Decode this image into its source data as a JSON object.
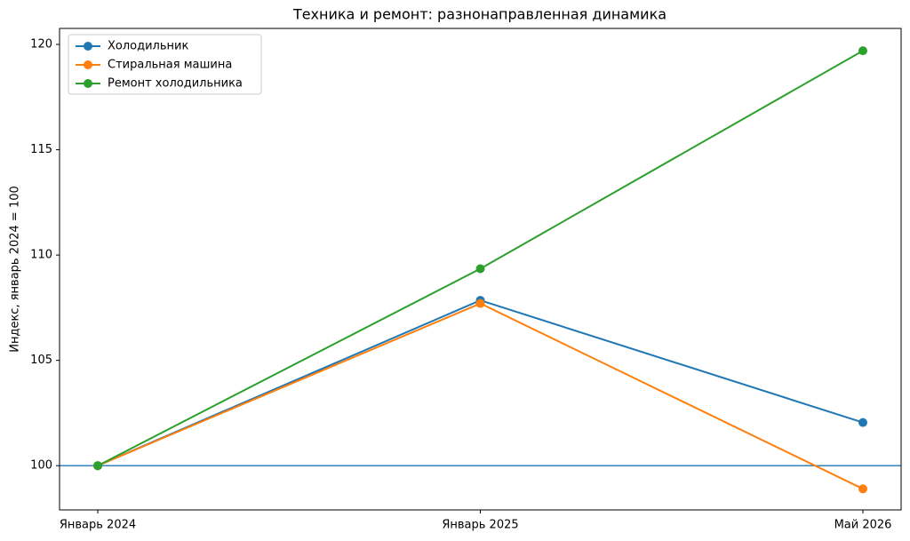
{
  "chart_data": {
    "type": "line",
    "title": "Техника и ремонт: разнонаправленная динамика",
    "y_label": "Индекс, январь 2024 = 100",
    "categories": [
      "Январь 2024",
      "Январь 2025",
      "Май 2026"
    ],
    "series": [
      {
        "name": "Холодильник",
        "color": "#1f77b4",
        "values": [
          100,
          107.85,
          102.05
        ]
      },
      {
        "name": "Стиральная машина",
        "color": "#ff7f0e",
        "values": [
          100,
          107.7,
          98.9
        ]
      },
      {
        "name": "Ремонт холодильника",
        "color": "#2ca02c",
        "values": [
          100,
          109.35,
          119.7
        ]
      }
    ],
    "hline": 100,
    "hline_color": "#1f77b4",
    "ylim": [
      97.9,
      120.76
    ],
    "yticks": [
      100,
      105,
      110,
      115,
      120
    ],
    "legend": "upper-left",
    "grid": false
  }
}
